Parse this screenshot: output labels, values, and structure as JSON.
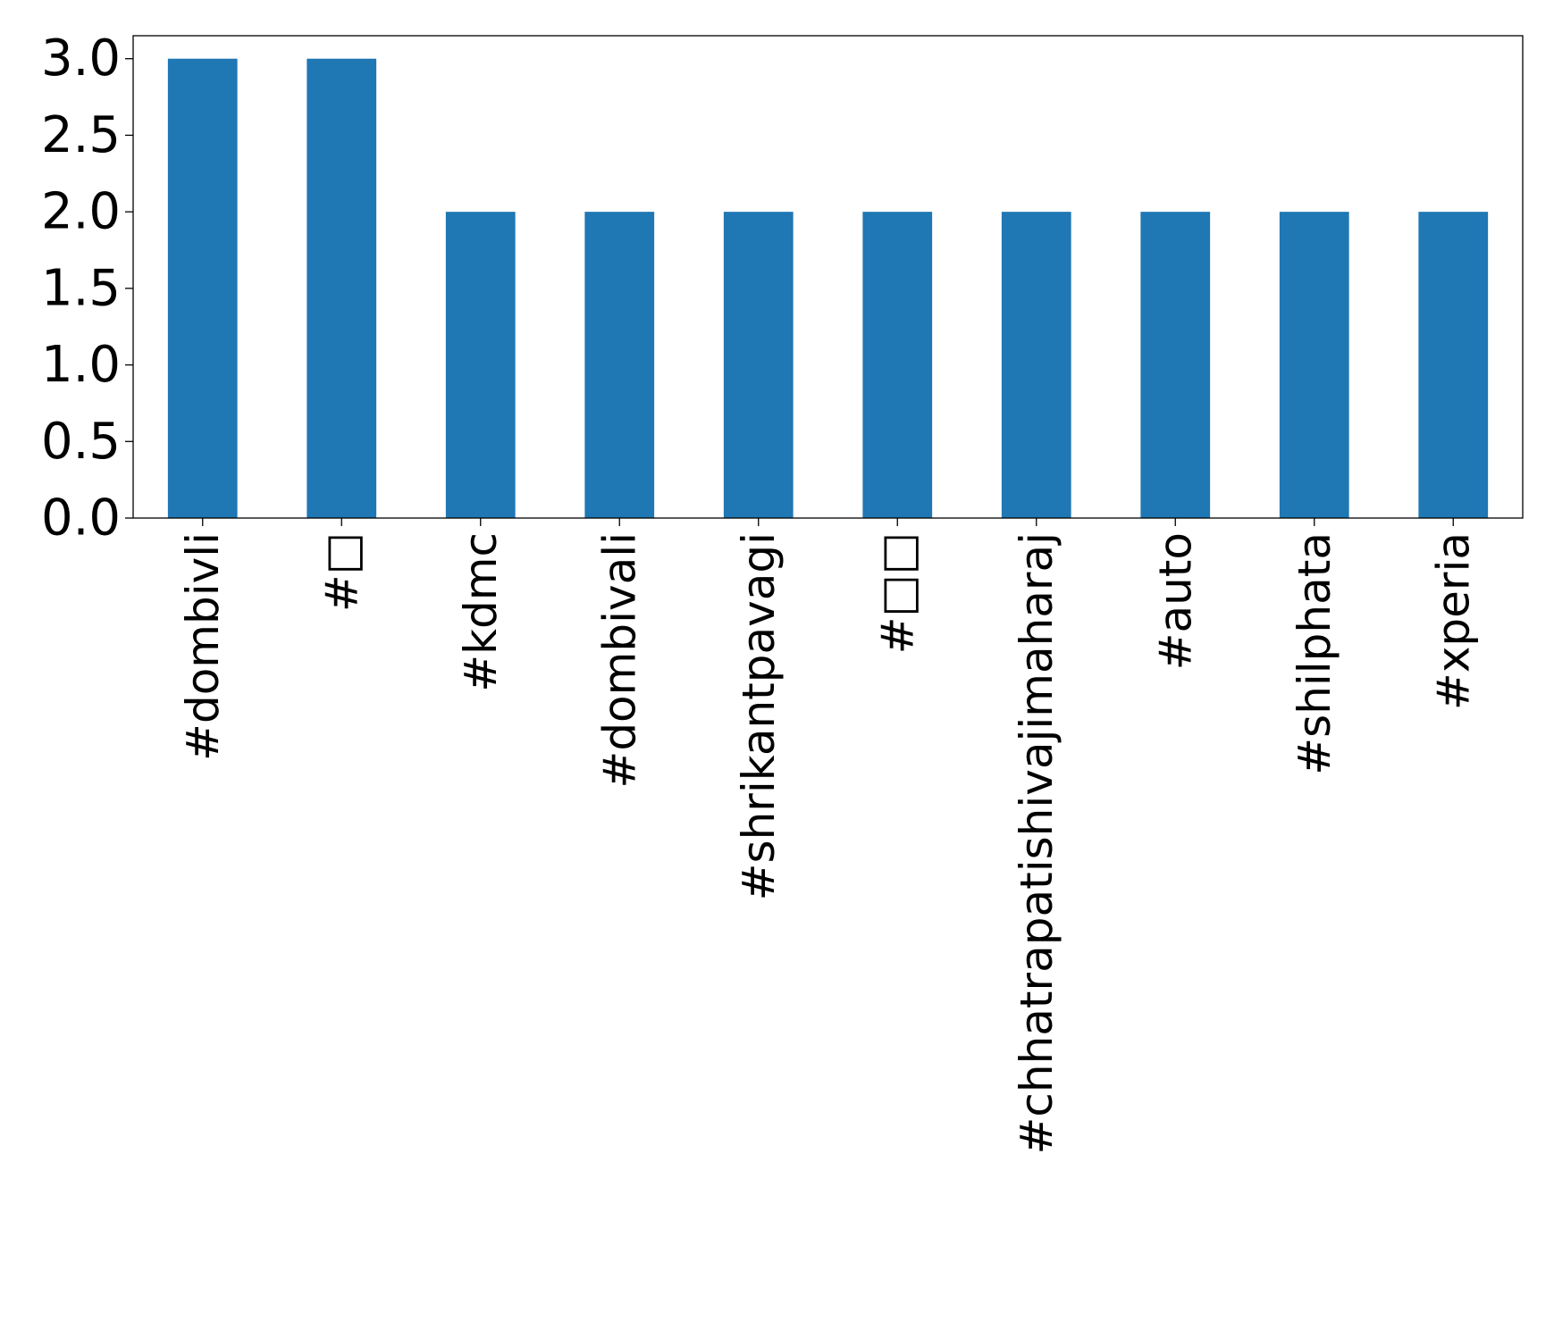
{
  "colors": {
    "bar": "#1f77b4",
    "axis": "#000000",
    "background": "#ffffff"
  },
  "chart_data": {
    "type": "bar",
    "categories": [
      "#dombivli",
      "#□",
      "#kdmc",
      "#dombivali",
      "#shrikantpavagi",
      "#□□",
      "#chhatrapatishivajimaharaj",
      "#auto",
      "#shilphata",
      "#xperia"
    ],
    "values": [
      3,
      3,
      2,
      2,
      2,
      2,
      2,
      2,
      2,
      2
    ],
    "yticks": [
      "0.0",
      "0.5",
      "1.0",
      "1.5",
      "2.0",
      "2.5",
      "3.0"
    ],
    "ylim": [
      0,
      3.15
    ],
    "grid": false,
    "legend": "none"
  }
}
